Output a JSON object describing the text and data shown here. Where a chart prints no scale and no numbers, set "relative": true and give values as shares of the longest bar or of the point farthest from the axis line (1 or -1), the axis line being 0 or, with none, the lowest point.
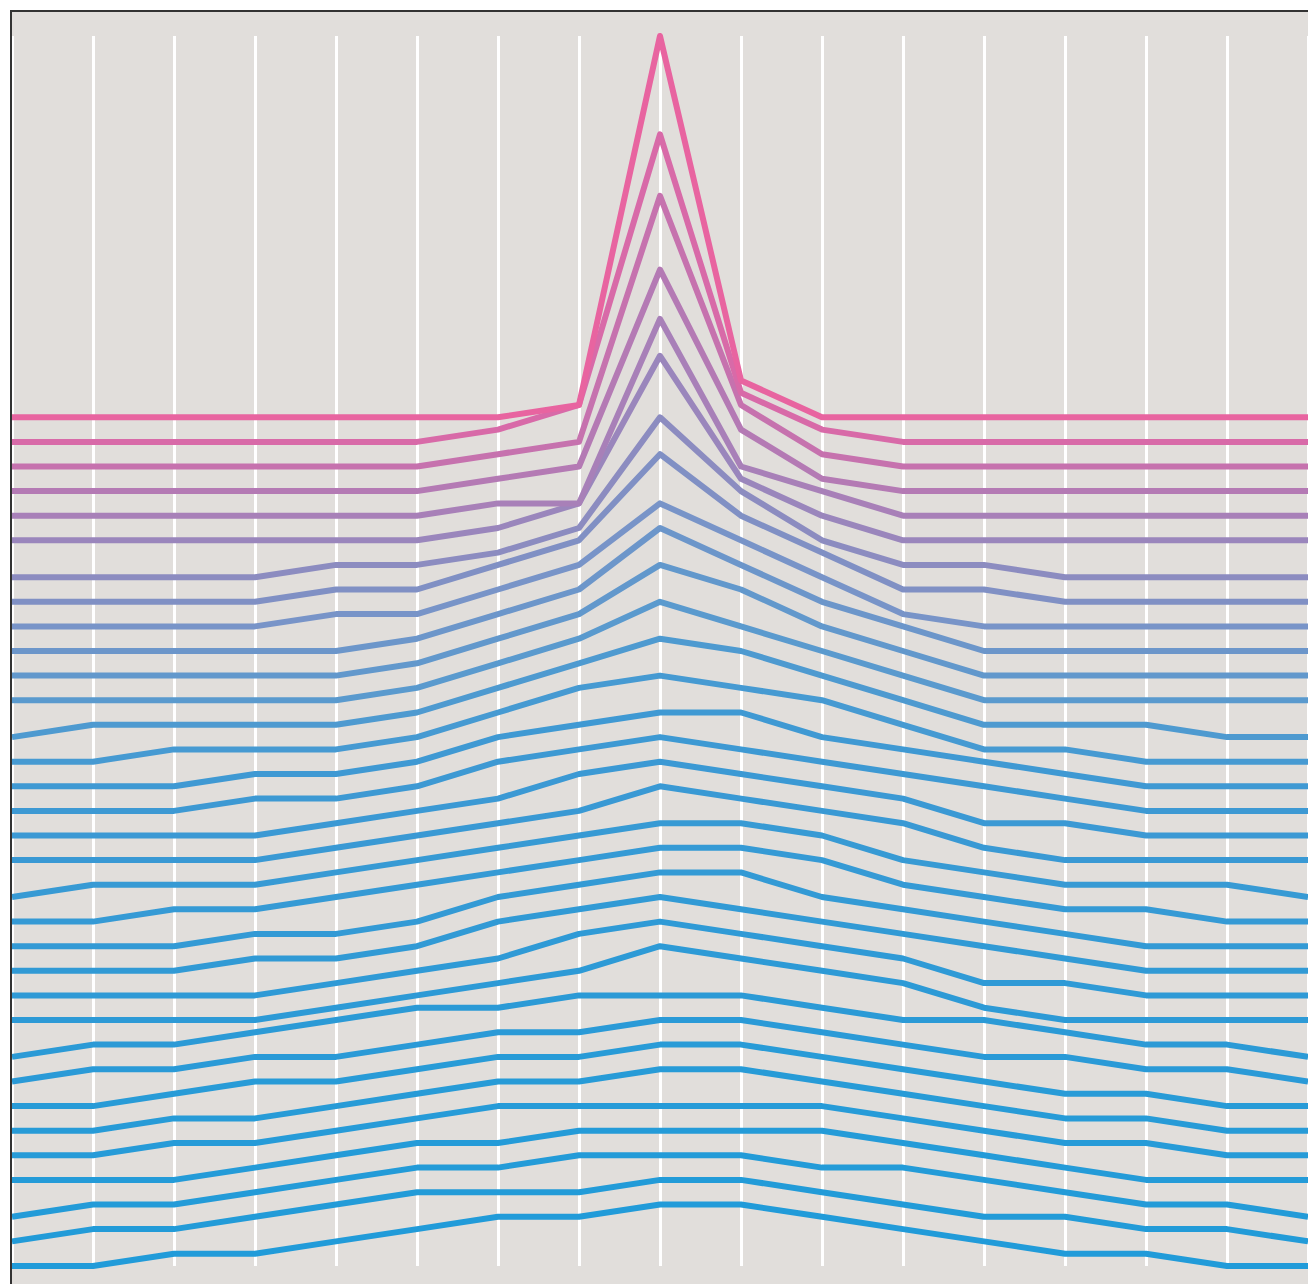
{
  "chart_data": {
    "type": "line",
    "relative": true,
    "grid": "x",
    "marker": "none",
    "line_style": "solid",
    "categories": [
      null,
      null,
      null,
      null,
      null,
      null,
      null,
      null,
      null,
      null,
      null,
      null,
      null,
      null,
      null,
      null,
      null
    ],
    "series": [
      {
        "color": "#e864a0",
        "values": [
          0.69,
          0.69,
          0.69,
          0.69,
          0.69,
          0.69,
          0.69,
          0.7,
          1,
          0.72,
          0.69,
          0.69,
          0.69,
          0.69,
          0.69,
          0.69,
          0.69
        ]
      },
      {
        "color": "#d86aa8",
        "values": [
          0.67,
          0.67,
          0.67,
          0.67,
          0.67,
          0.67,
          0.68,
          0.7,
          0.92,
          0.71,
          0.68,
          0.67,
          0.67,
          0.67,
          0.67,
          0.67,
          0.67
        ]
      },
      {
        "color": "#c672ae",
        "values": [
          0.65,
          0.65,
          0.65,
          0.65,
          0.65,
          0.65,
          0.66,
          0.67,
          0.87,
          0.7,
          0.66,
          0.65,
          0.65,
          0.65,
          0.65,
          0.65,
          0.65
        ]
      },
      {
        "color": "#b47ab4",
        "values": [
          0.63,
          0.63,
          0.63,
          0.63,
          0.63,
          0.63,
          0.64,
          0.65,
          0.81,
          0.68,
          0.64,
          0.63,
          0.63,
          0.63,
          0.63,
          0.63,
          0.63
        ]
      },
      {
        "color": "#a880b8",
        "values": [
          0.61,
          0.61,
          0.61,
          0.61,
          0.61,
          0.61,
          0.62,
          0.62,
          0.77,
          0.65,
          0.63,
          0.61,
          0.61,
          0.61,
          0.61,
          0.61,
          0.61
        ]
      },
      {
        "color": "#9a86bc",
        "values": [
          0.59,
          0.59,
          0.59,
          0.59,
          0.59,
          0.59,
          0.6,
          0.62,
          0.74,
          0.64,
          0.61,
          0.59,
          0.59,
          0.59,
          0.59,
          0.59,
          0.59
        ]
      },
      {
        "color": "#8c8cc0",
        "values": [
          0.56,
          0.56,
          0.56,
          0.56,
          0.57,
          0.57,
          0.58,
          0.6,
          0.69,
          0.63,
          0.59,
          0.57,
          0.57,
          0.56,
          0.56,
          0.56,
          0.56
        ]
      },
      {
        "color": "#8090c4",
        "values": [
          0.54,
          0.54,
          0.54,
          0.54,
          0.55,
          0.55,
          0.57,
          0.59,
          0.66,
          0.61,
          0.58,
          0.55,
          0.55,
          0.54,
          0.54,
          0.54,
          0.54
        ]
      },
      {
        "color": "#7894c8",
        "values": [
          0.52,
          0.52,
          0.52,
          0.52,
          0.53,
          0.53,
          0.55,
          0.57,
          0.62,
          0.59,
          0.56,
          0.53,
          0.52,
          0.52,
          0.52,
          0.52,
          0.52
        ]
      },
      {
        "color": "#6c96ca",
        "values": [
          0.5,
          0.5,
          0.5,
          0.5,
          0.5,
          0.51,
          0.53,
          0.55,
          0.6,
          0.57,
          0.54,
          0.52,
          0.5,
          0.5,
          0.5,
          0.5,
          0.5
        ]
      },
      {
        "color": "#6298cc",
        "values": [
          0.48,
          0.48,
          0.48,
          0.48,
          0.48,
          0.49,
          0.51,
          0.53,
          0.57,
          0.55,
          0.52,
          0.5,
          0.48,
          0.48,
          0.48,
          0.48,
          0.48
        ]
      },
      {
        "color": "#5a9ace",
        "values": [
          0.46,
          0.46,
          0.46,
          0.46,
          0.46,
          0.47,
          0.49,
          0.51,
          0.54,
          0.52,
          0.5,
          0.48,
          0.46,
          0.46,
          0.46,
          0.46,
          0.46
        ]
      },
      {
        "color": "#4e9ad0",
        "values": [
          0.43,
          0.44,
          0.44,
          0.44,
          0.44,
          0.45,
          0.47,
          0.49,
          0.51,
          0.5,
          0.48,
          0.46,
          0.44,
          0.44,
          0.44,
          0.43,
          0.43
        ]
      },
      {
        "color": "#469ad2",
        "values": [
          0.41,
          0.41,
          0.42,
          0.42,
          0.42,
          0.43,
          0.45,
          0.47,
          0.48,
          0.47,
          0.46,
          0.44,
          0.42,
          0.42,
          0.41,
          0.41,
          0.41
        ]
      },
      {
        "color": "#3f99d3",
        "values": [
          0.39,
          0.39,
          0.39,
          0.4,
          0.4,
          0.41,
          0.43,
          0.44,
          0.45,
          0.45,
          0.43,
          0.42,
          0.41,
          0.4,
          0.39,
          0.39,
          0.39
        ]
      },
      {
        "color": "#3d99d3",
        "values": [
          0.37,
          0.37,
          0.37,
          0.38,
          0.38,
          0.39,
          0.41,
          0.42,
          0.43,
          0.42,
          0.41,
          0.4,
          0.39,
          0.38,
          0.37,
          0.37,
          0.37
        ]
      },
      {
        "color": "#3b99d4",
        "values": [
          0.35,
          0.35,
          0.35,
          0.35,
          0.36,
          0.37,
          0.38,
          0.4,
          0.41,
          0.4,
          0.39,
          0.38,
          0.36,
          0.36,
          0.35,
          0.35,
          0.35
        ]
      },
      {
        "color": "#3999d4",
        "values": [
          0.33,
          0.33,
          0.33,
          0.33,
          0.34,
          0.35,
          0.36,
          0.37,
          0.39,
          0.38,
          0.37,
          0.36,
          0.34,
          0.33,
          0.33,
          0.33,
          0.33
        ]
      },
      {
        "color": "#379ad4",
        "values": [
          0.3,
          0.31,
          0.31,
          0.31,
          0.32,
          0.33,
          0.34,
          0.35,
          0.36,
          0.36,
          0.35,
          0.33,
          0.32,
          0.31,
          0.31,
          0.31,
          0.3
        ]
      },
      {
        "color": "#359ad5",
        "values": [
          0.28,
          0.28,
          0.29,
          0.29,
          0.3,
          0.31,
          0.32,
          0.33,
          0.34,
          0.34,
          0.33,
          0.31,
          0.3,
          0.29,
          0.29,
          0.28,
          0.28
        ]
      },
      {
        "color": "#339ad5",
        "values": [
          0.26,
          0.26,
          0.26,
          0.27,
          0.27,
          0.28,
          0.3,
          0.31,
          0.32,
          0.32,
          0.3,
          0.29,
          0.28,
          0.27,
          0.26,
          0.26,
          0.26
        ]
      },
      {
        "color": "#319ad5",
        "values": [
          0.24,
          0.24,
          0.24,
          0.25,
          0.25,
          0.26,
          0.28,
          0.29,
          0.3,
          0.29,
          0.28,
          0.27,
          0.26,
          0.25,
          0.24,
          0.24,
          0.24
        ]
      },
      {
        "color": "#2f9ad6",
        "values": [
          0.22,
          0.22,
          0.22,
          0.22,
          0.23,
          0.24,
          0.25,
          0.27,
          0.28,
          0.27,
          0.26,
          0.25,
          0.23,
          0.23,
          0.22,
          0.22,
          0.22
        ]
      },
      {
        "color": "#2d9ad6",
        "values": [
          0.2,
          0.2,
          0.2,
          0.2,
          0.21,
          0.22,
          0.23,
          0.24,
          0.26,
          0.25,
          0.24,
          0.23,
          0.21,
          0.2,
          0.2,
          0.2,
          0.2
        ]
      },
      {
        "color": "#2b9ad6",
        "values": [
          0.17,
          0.18,
          0.18,
          0.19,
          0.2,
          0.21,
          0.21,
          0.22,
          0.22,
          0.22,
          0.21,
          0.2,
          0.2,
          0.19,
          0.18,
          0.18,
          0.17
        ]
      },
      {
        "color": "#2a9ad7",
        "values": [
          0.15,
          0.16,
          0.16,
          0.17,
          0.17,
          0.18,
          0.19,
          0.19,
          0.2,
          0.2,
          0.19,
          0.18,
          0.17,
          0.17,
          0.16,
          0.16,
          0.15
        ]
      },
      {
        "color": "#289bd7",
        "values": [
          0.13,
          0.13,
          0.14,
          0.15,
          0.15,
          0.16,
          0.17,
          0.17,
          0.18,
          0.18,
          0.17,
          0.16,
          0.15,
          0.14,
          0.14,
          0.13,
          0.13
        ]
      },
      {
        "color": "#279bd7",
        "values": [
          0.11,
          0.11,
          0.12,
          0.12,
          0.13,
          0.14,
          0.15,
          0.15,
          0.16,
          0.16,
          0.15,
          0.14,
          0.13,
          0.12,
          0.12,
          0.11,
          0.11
        ]
      },
      {
        "color": "#269bd8",
        "values": [
          0.09,
          0.09,
          0.1,
          0.1,
          0.11,
          0.12,
          0.13,
          0.13,
          0.13,
          0.13,
          0.13,
          0.12,
          0.11,
          0.1,
          0.1,
          0.09,
          0.09
        ]
      },
      {
        "color": "#249bd8",
        "values": [
          0.07,
          0.07,
          0.07,
          0.08,
          0.09,
          0.1,
          0.1,
          0.11,
          0.11,
          0.11,
          0.11,
          0.1,
          0.09,
          0.08,
          0.07,
          0.07,
          0.07
        ]
      },
      {
        "color": "#239bd8",
        "values": [
          0.04,
          0.05,
          0.05,
          0.06,
          0.07,
          0.08,
          0.08,
          0.09,
          0.09,
          0.09,
          0.08,
          0.08,
          0.07,
          0.06,
          0.05,
          0.05,
          0.04
        ]
      },
      {
        "color": "#229bd8",
        "values": [
          0.02,
          0.03,
          0.03,
          0.04,
          0.05,
          0.06,
          0.06,
          0.06,
          0.07,
          0.07,
          0.06,
          0.05,
          0.04,
          0.04,
          0.03,
          0.03,
          0.02
        ]
      },
      {
        "color": "#219bd9",
        "values": [
          0,
          0,
          0.01,
          0.01,
          0.02,
          0.03,
          0.04,
          0.04,
          0.05,
          0.05,
          0.04,
          0.03,
          0.02,
          0.01,
          0.01,
          0,
          0
        ]
      }
    ]
  }
}
